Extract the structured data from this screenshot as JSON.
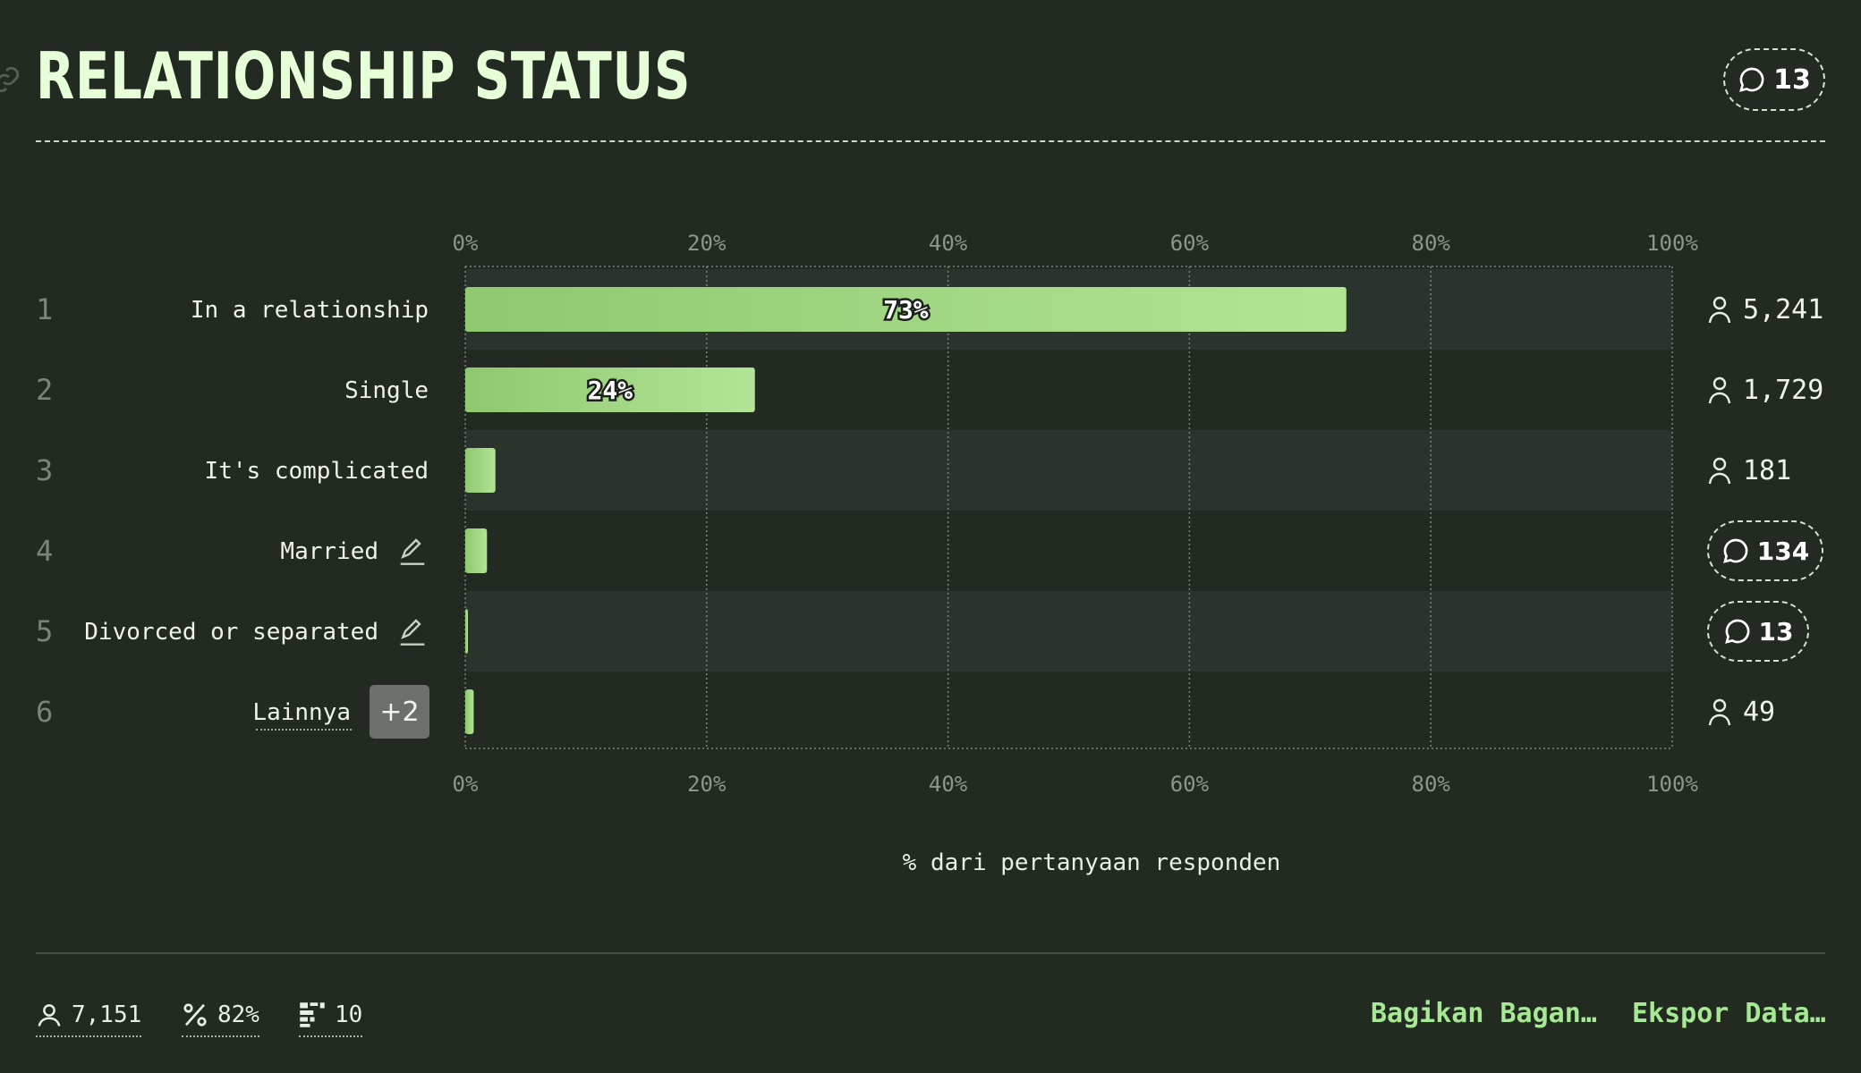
{
  "header": {
    "title": "RELATIONSHIP STATUS",
    "comment_count": "13"
  },
  "chart_data": {
    "type": "bar",
    "orientation": "horizontal",
    "categories": [
      "In a relationship",
      "Single",
      "It's complicated",
      "Married",
      "Divorced or separated",
      "Lainnya"
    ],
    "values": [
      73,
      24,
      2.5,
      1.8,
      0.2,
      0.7
    ],
    "value_labels": [
      "73%",
      "24%",
      "",
      "",
      "",
      ""
    ],
    "ranks": [
      "1",
      "2",
      "3",
      "4",
      "5",
      "6"
    ],
    "respondents": [
      "5,241",
      "1,729",
      "181",
      "",
      "",
      "49"
    ],
    "comments": [
      "",
      "",
      "",
      "134",
      "13",
      ""
    ],
    "xlim": [
      0,
      100
    ],
    "ticks": [
      "0%",
      "20%",
      "40%",
      "60%",
      "80%",
      "100%"
    ],
    "xlabel": "% dari pertanyaan responden",
    "other_badge": "+2"
  },
  "footer": {
    "respondents": "7,151",
    "percent": "82%",
    "choices": "10",
    "share_label": "Bagikan Bagan…",
    "export_label": "Ekspor Data…"
  },
  "colors": {
    "bar_start": "#8fc870",
    "bar_end": "#b2e496",
    "accent": "#a6e894",
    "title": "#e6ffd8"
  }
}
